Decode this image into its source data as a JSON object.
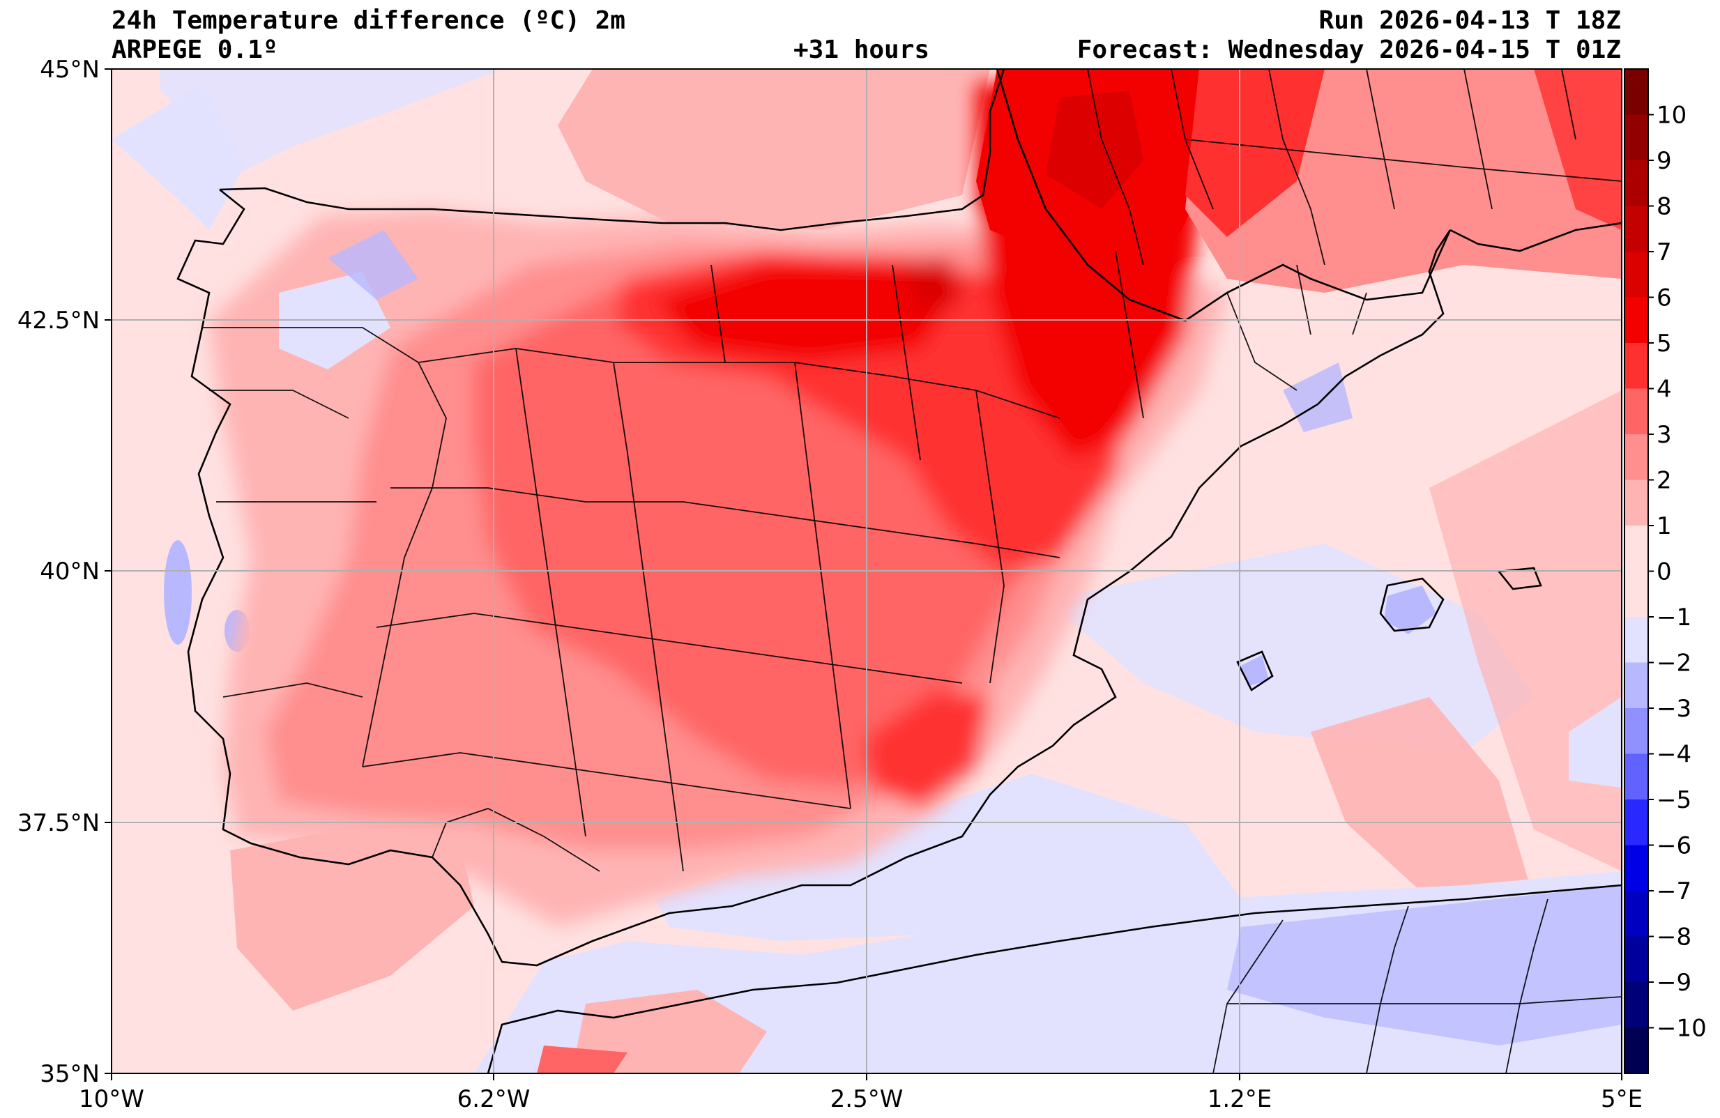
{
  "header": {
    "title": "24h Temperature difference (ºC) 2m",
    "model": "ARPEGE 0.1º",
    "lead": "+31 hours",
    "run": "Run 2026-04-13 T 18Z",
    "forecast": "Forecast: Wednesday 2026-04-15 T 01Z"
  },
  "map": {
    "lon_range": [
      -10,
      5
    ],
    "lat_range": [
      35,
      45
    ],
    "lat_ticks": [
      "45°N",
      "42.5°N",
      "40°N",
      "37.5°N",
      "35°N"
    ],
    "lon_ticks": [
      "10°W",
      "6.2°W",
      "2.5°W",
      "1.2°E",
      "5°E"
    ]
  },
  "colorbar": {
    "labels": [
      "10",
      "9",
      "8",
      "7",
      "6",
      "5",
      "4",
      "3",
      "2",
      "1",
      "0",
      "−1",
      "−2",
      "−3",
      "−4",
      "−5",
      "−6",
      "−7",
      "−8",
      "−9",
      "−10"
    ],
    "colors": [
      "#7a0000",
      "#930000",
      "#ac0000",
      "#c40000",
      "#dc0000",
      "#f30000",
      "#ff3030",
      "#ff6565",
      "#ff8e8e",
      "#ffb4b4",
      "#ffe1e1",
      "#e2e2ff",
      "#b8b8ff",
      "#9090ff",
      "#6262ff",
      "#2828ff",
      "#0000e6",
      "#0000c2",
      "#00009c",
      "#000078",
      "#000052"
    ]
  }
}
